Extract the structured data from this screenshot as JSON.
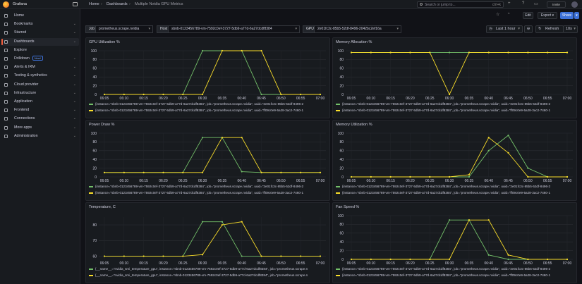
{
  "topbar": {
    "brand": "Grafana",
    "breadcrumbs": [
      "Home",
      "Dashboards",
      "Multiple Nvidia GPU Metrics"
    ],
    "search_placeholder": "Search or jump to...",
    "search_shortcut": "ctrl+k",
    "invite_label": "Invite"
  },
  "sidebar": {
    "items": [
      {
        "label": "Home",
        "icon": "home-icon",
        "active": false,
        "chevron": false
      },
      {
        "label": "Bookmarks",
        "icon": "bookmark-icon",
        "active": false,
        "chevron": true
      },
      {
        "label": "Starred",
        "icon": "star-icon",
        "active": false,
        "chevron": true
      },
      {
        "label": "Dashboards",
        "icon": "apps-icon",
        "active": true,
        "chevron": true
      },
      {
        "label": "Explore",
        "icon": "compass-icon",
        "active": false,
        "chevron": false
      },
      {
        "label": "Drilldown",
        "icon": "drilldown-icon",
        "active": false,
        "chevron": true,
        "badge": "New!"
      },
      {
        "label": "Alerts & IRM",
        "icon": "bell-icon",
        "active": false,
        "chevron": true
      },
      {
        "label": "Testing & synthetics",
        "icon": "gauge-icon",
        "active": false,
        "chevron": true
      },
      {
        "label": "Cloud provider",
        "icon": "cloud-icon",
        "active": false,
        "chevron": true
      },
      {
        "label": "Infrastructure",
        "icon": "server-icon",
        "active": false,
        "chevron": true
      },
      {
        "label": "Application",
        "icon": "application-icon",
        "active": false,
        "chevron": true
      },
      {
        "label": "Frontend",
        "icon": "frontend-icon",
        "active": false,
        "chevron": true
      },
      {
        "label": "Connections",
        "icon": "plug-icon",
        "active": false,
        "chevron": true
      },
      {
        "label": "More apps",
        "icon": "apps-icon",
        "active": false,
        "chevron": true
      },
      {
        "label": "Administration",
        "icon": "cog-icon",
        "active": false,
        "chevron": true
      }
    ]
  },
  "toolbar": {
    "edit_label": "Edit",
    "export_label": "Export",
    "share_label": "Share"
  },
  "variables": [
    {
      "label": "Job",
      "value": "prometheus.scrape.nvidia"
    },
    {
      "label": "Host",
      "value": "sbnb-0123456789-vm-7592c0ef-3727-5db9-a77d-6a27dcdf8384"
    },
    {
      "label": "GPU",
      "value": "2e01fc3c-85b5-52df-8496-2042bc2ef16a"
    }
  ],
  "time": {
    "range_label": "Last 1 hour",
    "refresh_label": "Refresh",
    "interval_label": "10s"
  },
  "colors": {
    "series_a": "#73bf69",
    "series_b": "#fade2a",
    "accent": "#f55f3e",
    "primary": "#3d71d9"
  },
  "x_ticks": [
    "06:05",
    "06:10",
    "06:15",
    "06:20",
    "06:25",
    "06:30",
    "06:35",
    "06:40",
    "06:45",
    "06:50",
    "06:55",
    "07:00"
  ],
  "legend_host": {
    "a": "{instance=\"sbnb-0123456789-vm-7592c0ef-3727-5db9-a77d-6a27dcdf8384\", job=\"prometheus.scrape.nvidia\", uuid=\"2e01fc3c-85b5-52df-8496-2",
    "b": "{instance=\"sbnb-0123456789-vm-7592c0ef-3727-5db9-a77d-6a27dcdf8384\", job=\"prometheus.scrape.nvidia\", uuid=\"ff09c0e9-5a28-3ac2-7460-1"
  },
  "legend_temp": {
    "a": "{__name__=\"nvidia_smi_temperature_gpu\", instance=\"sbnb-0123456789-vm-7592c0ef-3727-5db9-a77d-6a27dcdf8384\", job=\"prometheus.scrape.n",
    "b": "{__name__=\"nvidia_smi_temperature_gpu\", instance=\"sbnb-0123456789-vm-7592c0ef-3727-5db9-a77d-6a27dcdf8384\", job=\"prometheus.scrape.n"
  },
  "chart_data": [
    {
      "type": "line",
      "title": "GPU Utilization %",
      "ylim": [
        0,
        100
      ],
      "yticks": [
        0,
        20,
        40,
        60,
        80,
        100
      ],
      "x": [
        "06:05",
        "06:10",
        "06:15",
        "06:20",
        "06:25",
        "06:30",
        "06:35",
        "06:40",
        "06:45",
        "06:50",
        "06:55",
        "07:00"
      ],
      "series": [
        {
          "color": "#73bf69",
          "values": [
            0,
            0,
            0,
            0,
            0,
            100,
            100,
            100,
            0,
            0,
            0,
            0
          ]
        },
        {
          "color": "#fade2a",
          "values": [
            0,
            0,
            0,
            0,
            0,
            0,
            100,
            100,
            100,
            0,
            0,
            0
          ]
        }
      ]
    },
    {
      "type": "line",
      "title": "Memory Allocation %",
      "ylim": [
        0,
        100
      ],
      "yticks": [
        0,
        20,
        40,
        60,
        80,
        100
      ],
      "x": [
        "06:05",
        "06:10",
        "06:15",
        "06:20",
        "06:25",
        "06:30",
        "06:35",
        "06:40",
        "06:45",
        "06:50",
        "06:55",
        "07:00"
      ],
      "series": [
        {
          "color": "#73bf69",
          "values": [
            96,
            96,
            96,
            96,
            96,
            96,
            96,
            96,
            96,
            96,
            96,
            96
          ]
        },
        {
          "color": "#fade2a",
          "values": [
            96,
            96,
            96,
            96,
            96,
            0,
            96,
            96,
            96,
            96,
            96,
            96
          ]
        }
      ]
    },
    {
      "type": "line",
      "title": "Power Draw %",
      "ylim": [
        0,
        100
      ],
      "yticks": [
        0,
        20,
        40,
        60,
        80,
        100
      ],
      "x": [
        "06:05",
        "06:10",
        "06:15",
        "06:20",
        "06:25",
        "06:30",
        "06:35",
        "06:40",
        "06:45",
        "06:50",
        "06:55",
        "07:00"
      ],
      "series": [
        {
          "color": "#73bf69",
          "values": [
            10,
            10,
            10,
            10,
            10,
            90,
            90,
            12,
            10,
            10,
            10,
            10
          ]
        },
        {
          "color": "#fade2a",
          "values": [
            10,
            10,
            10,
            10,
            10,
            10,
            90,
            90,
            10,
            10,
            10,
            10
          ]
        }
      ]
    },
    {
      "type": "line",
      "title": "Memory Utilization %",
      "ylim": [
        0,
        100
      ],
      "yticks": [
        0,
        20,
        40,
        60,
        80,
        100
      ],
      "x": [
        "06:05",
        "06:10",
        "06:15",
        "06:20",
        "06:25",
        "06:30",
        "06:35",
        "06:40",
        "06:45",
        "06:50",
        "06:55",
        "07:00"
      ],
      "series": [
        {
          "color": "#73bf69",
          "values": [
            0,
            0,
            0,
            0,
            0,
            0,
            0,
            60,
            95,
            20,
            0,
            0
          ]
        },
        {
          "color": "#fade2a",
          "values": [
            0,
            0,
            0,
            0,
            0,
            0,
            5,
            90,
            55,
            0,
            0,
            0
          ]
        }
      ]
    },
    {
      "type": "line",
      "title": "Temperature, C",
      "ylim": [
        58,
        85
      ],
      "yticks": [
        60,
        70,
        80
      ],
      "x": [
        "06:05",
        "06:10",
        "06:15",
        "06:20",
        "06:25",
        "06:30",
        "06:35",
        "06:40",
        "06:45",
        "06:50",
        "06:55",
        "07:00"
      ],
      "series": [
        {
          "color": "#73bf69",
          "values": [
            60,
            60,
            60,
            60,
            60,
            82,
            82,
            60,
            60,
            60,
            60,
            60
          ]
        },
        {
          "color": "#fade2a",
          "values": [
            60,
            60,
            60,
            60,
            60,
            61,
            80,
            82,
            60,
            60,
            60,
            60
          ]
        }
      ]
    },
    {
      "type": "line",
      "title": "Fan Speed %",
      "ylim": [
        0,
        100
      ],
      "yticks": [
        0,
        20,
        40,
        60,
        80,
        100
      ],
      "x": [
        "06:05",
        "06:10",
        "06:15",
        "06:20",
        "06:25",
        "06:30",
        "06:35",
        "06:40",
        "06:45",
        "06:50",
        "06:55",
        "07:00"
      ],
      "series": [
        {
          "color": "#73bf69",
          "values": [
            0,
            0,
            0,
            0,
            0,
            90,
            90,
            10,
            0,
            0,
            0,
            0
          ]
        },
        {
          "color": "#fade2a",
          "values": [
            0,
            0,
            0,
            0,
            0,
            0,
            90,
            90,
            10,
            0,
            0,
            0
          ]
        }
      ]
    }
  ]
}
